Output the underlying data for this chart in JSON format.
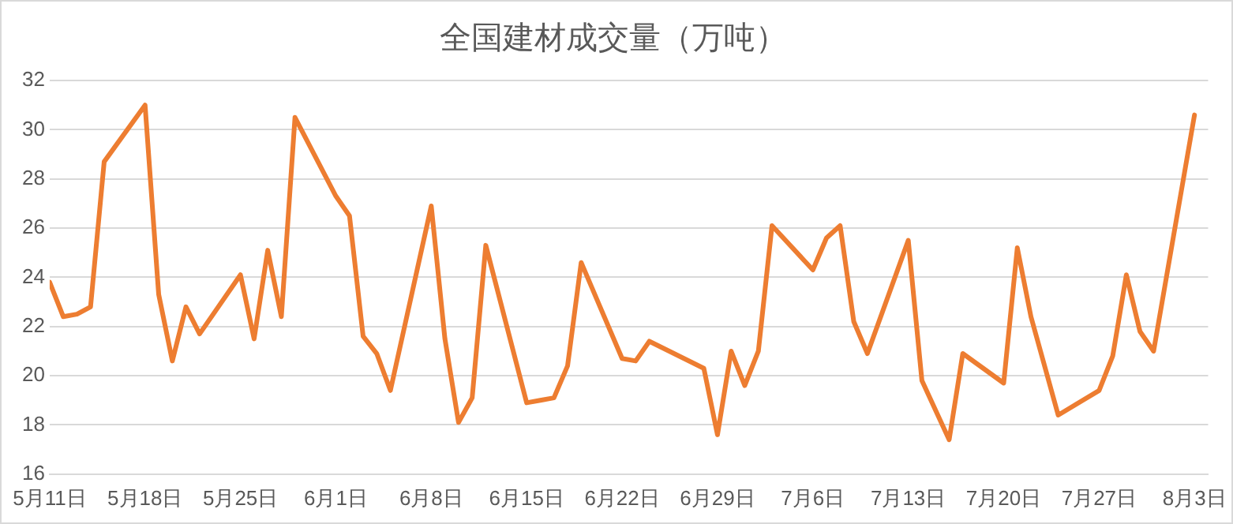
{
  "chart_data": {
    "type": "line",
    "title": "全国建材成交量（万吨）",
    "x": [
      "--05-11",
      "--05-12",
      "--05-13",
      "--05-14",
      "--05-15",
      "--05-18",
      "--05-19",
      "--05-20",
      "--05-21",
      "--05-22",
      "--05-25",
      "--05-26",
      "--05-27",
      "--05-28",
      "--05-29",
      "--06-01",
      "--06-02",
      "--06-03",
      "--06-04",
      "--06-05",
      "--06-08",
      "--06-09",
      "--06-10",
      "--06-11",
      "--06-12",
      "--06-15",
      "--06-16",
      "--06-17",
      "--06-18",
      "--06-19",
      "--06-22",
      "--06-23",
      "--06-24",
      "--06-28",
      "--06-29",
      "--06-30",
      "--07-01",
      "--07-02",
      "--07-03",
      "--07-06",
      "--07-07",
      "--07-08",
      "--07-09",
      "--07-10",
      "--07-13",
      "--07-14",
      "--07-16",
      "--07-17",
      "--07-20",
      "--07-21",
      "--07-22",
      "--07-24",
      "--07-27",
      "--07-28",
      "--07-29",
      "--07-30",
      "--07-31",
      "--08-03"
    ],
    "series": [
      {
        "color": "#ed7d31",
        "values": [
          23.8,
          22.4,
          22.5,
          22.8,
          28.7,
          31.0,
          23.3,
          20.6,
          22.8,
          21.7,
          24.1,
          21.5,
          25.1,
          22.4,
          30.5,
          27.3,
          26.5,
          21.6,
          20.9,
          19.4,
          26.9,
          21.5,
          18.1,
          19.1,
          25.3,
          18.9,
          19.0,
          19.1,
          20.4,
          24.6,
          20.7,
          20.6,
          21.4,
          20.3,
          17.6,
          21.0,
          19.6,
          21.0,
          26.1,
          24.3,
          25.6,
          26.1,
          22.2,
          20.9,
          25.5,
          19.8,
          17.4,
          20.9,
          19.7,
          25.2,
          22.4,
          18.4,
          19.4,
          20.8,
          24.1,
          21.8,
          21.0,
          30.6
        ]
      }
    ],
    "xlim": [
      "--05-11",
      "--08-04"
    ],
    "xticks": [
      {
        "value": "--05-11",
        "label": "5月11日"
      },
      {
        "value": "--05-18",
        "label": "5月18日"
      },
      {
        "value": "--05-25",
        "label": "5月25日"
      },
      {
        "value": "--06-01",
        "label": "6月1日"
      },
      {
        "value": "--06-08",
        "label": "6月8日"
      },
      {
        "value": "--06-15",
        "label": "6月15日"
      },
      {
        "value": "--06-22",
        "label": "6月22日"
      },
      {
        "value": "--06-29",
        "label": "6月29日"
      },
      {
        "value": "--07-06",
        "label": "7月6日"
      },
      {
        "value": "--07-13",
        "label": "7月13日"
      },
      {
        "value": "--07-20",
        "label": "7月20日"
      },
      {
        "value": "--07-27",
        "label": "7月27日"
      },
      {
        "value": "--08-03",
        "label": "8月3日"
      }
    ],
    "ylim": [
      16,
      32
    ],
    "yticks": [
      16,
      18,
      20,
      22,
      24,
      26,
      28,
      30,
      32
    ],
    "grid": "y",
    "legend": false,
    "marker": "none",
    "line_style": "solid"
  }
}
